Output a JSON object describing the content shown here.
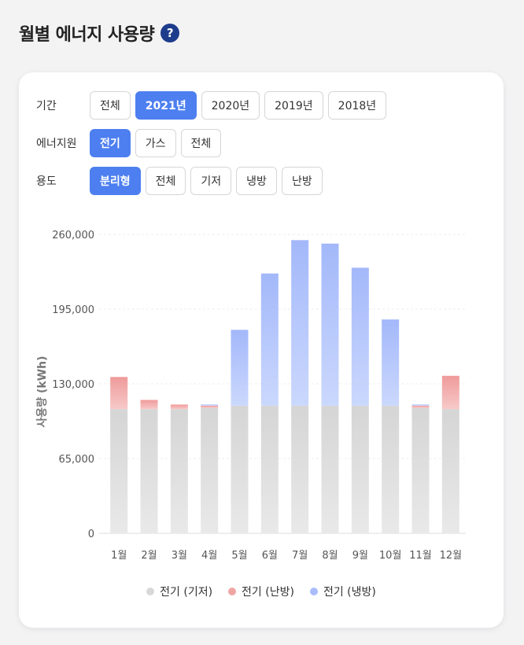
{
  "header": {
    "title": "월별 에너지 사용량",
    "help_icon": "?"
  },
  "filters": [
    {
      "label": "기간",
      "options": [
        "전체",
        "2021년",
        "2020년",
        "2019년",
        "2018년"
      ],
      "selected": 1
    },
    {
      "label": "에너지원",
      "options": [
        "전기",
        "가스",
        "전체"
      ],
      "selected": 0
    },
    {
      "label": "용도",
      "options": [
        "분리형",
        "전체",
        "기저",
        "냉방",
        "난방"
      ],
      "selected": 0
    }
  ],
  "colors": {
    "accent": "#4d7ff0",
    "base_top": "#d5d5d5",
    "base_bottom": "#e9e9e9",
    "heat_top": "#ef9a9a",
    "heat_bottom": "#f7c9c9",
    "cool_top": "#a3b8fa",
    "cool_bottom": "#cbd8fd"
  },
  "chart_data": {
    "type": "bar",
    "stacked": true,
    "categories": [
      "1월",
      "2월",
      "3월",
      "4월",
      "5월",
      "6월",
      "7월",
      "8월",
      "9월",
      "10월",
      "11월",
      "12월"
    ],
    "series": [
      {
        "name": "전기 (기저)",
        "values": [
          108000,
          108000,
          108000,
          109000,
          111000,
          111000,
          111000,
          111000,
          111000,
          111000,
          109000,
          108000
        ]
      },
      {
        "name": "전기 (난방)",
        "values": [
          28000,
          8000,
          4000,
          2000,
          0,
          0,
          0,
          0,
          0,
          0,
          2000,
          29000
        ]
      },
      {
        "name": "전기 (냉방)",
        "values": [
          0,
          0,
          0,
          1000,
          66000,
          115000,
          144000,
          141000,
          120000,
          75000,
          1000,
          0
        ]
      }
    ],
    "ylabel": "사용량 (kWh)",
    "ylim": [
      0,
      260000
    ],
    "yticks": [
      0,
      65000,
      130000,
      195000,
      260000
    ],
    "ytick_labels": [
      "0",
      "65,000",
      "130,000",
      "195,000",
      "260,000"
    ],
    "grid": true,
    "legend": "bottom"
  }
}
